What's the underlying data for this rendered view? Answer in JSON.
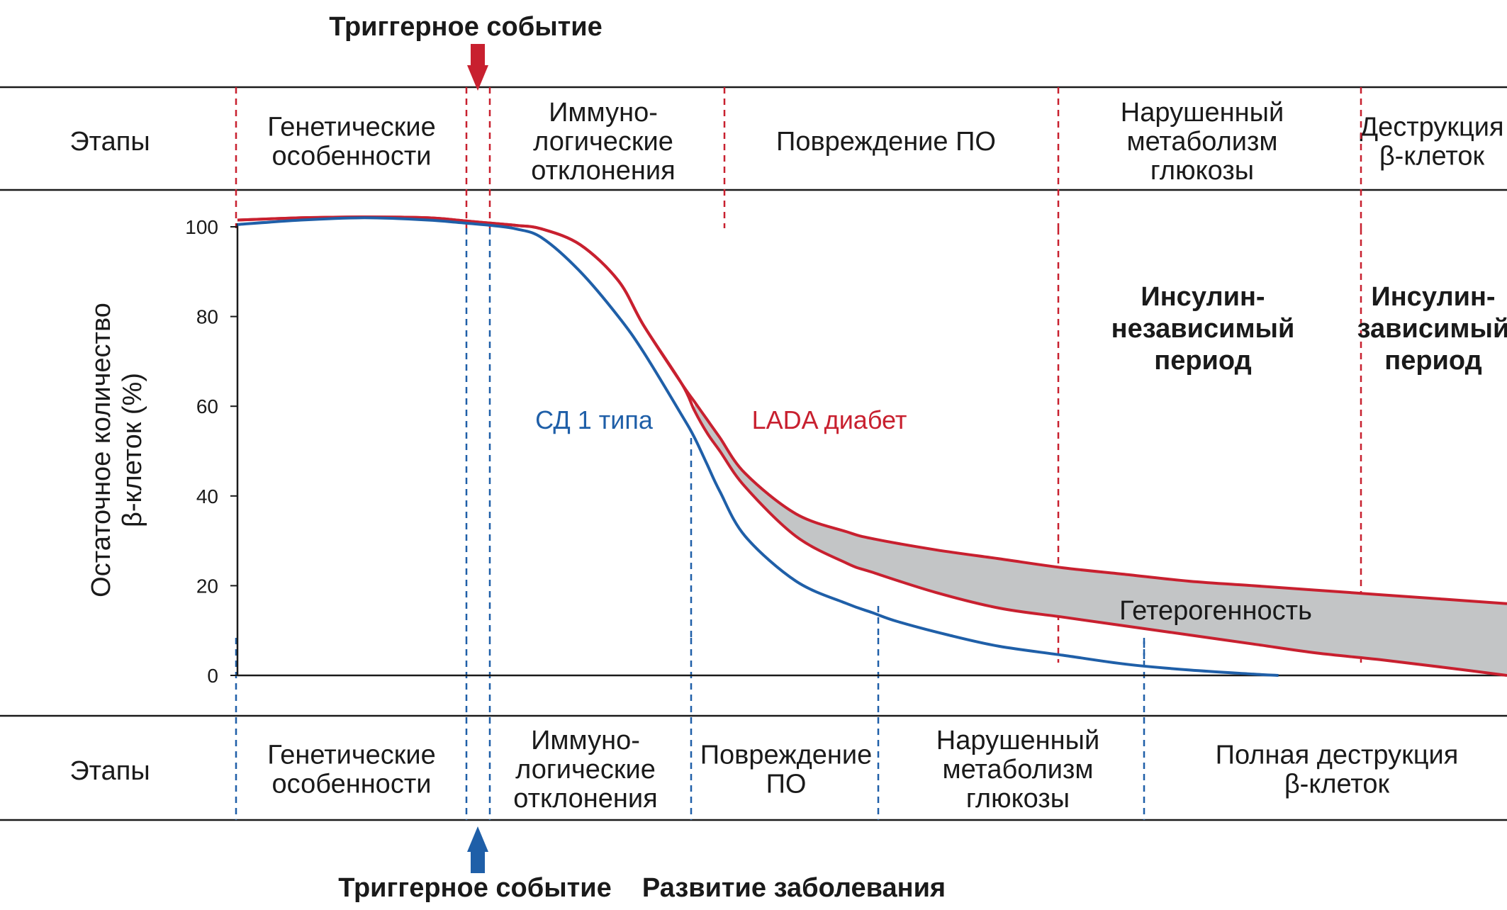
{
  "top_band": {
    "label": "Этапы",
    "stages": [
      {
        "lines": [
          "Генетические",
          "особенности"
        ]
      },
      {
        "lines": [
          "Иммуно-",
          "логические",
          "отклонения"
        ]
      },
      {
        "lines": [
          "Повреждение ПО"
        ]
      },
      {
        "lines": [
          "Нарушенный",
          "метаболизм",
          "глюкозы"
        ]
      },
      {
        "lines": [
          "Деструкция",
          "β-клеток"
        ]
      }
    ]
  },
  "bottom_band": {
    "label": "Этапы",
    "stages": [
      {
        "lines": [
          "Генетические",
          "особенности"
        ]
      },
      {
        "lines": [
          "Иммуно-",
          "логические",
          "отклонения"
        ]
      },
      {
        "lines": [
          "Повреждение",
          "ПО"
        ]
      },
      {
        "lines": [
          "Нарушенный",
          "метаболизм",
          "глюкозы"
        ]
      },
      {
        "lines": [
          "Полная деструкция",
          "β-клеток"
        ]
      }
    ]
  },
  "annotations": {
    "trigger_top": "Триггерное событие",
    "trigger_bottom": "Триггерное событие",
    "disease_onset": "Развитие заболевания",
    "heterogeneity": "Гетерогенность",
    "insulin_independent": [
      "Инсулин-",
      "независимый",
      "период"
    ],
    "insulin_dependent": [
      "Инсулин-",
      "зависимый",
      "период"
    ]
  },
  "colors": {
    "lada": "#c8202f",
    "type1": "#1f5fa8",
    "band_fill": "#c3c5c6",
    "axis": "#1a1a1a"
  },
  "chart_data": {
    "type": "line",
    "title": "",
    "xlabel": "",
    "ylabel": [
      "Остаточное количество",
      "β-клеток (%)"
    ],
    "ylim": [
      0,
      100
    ],
    "yticks": [
      0,
      20,
      40,
      60,
      80,
      100
    ],
    "x_note": "x is relative time, 0–100 (axis not labeled)",
    "xlim": [
      0,
      100
    ],
    "series": [
      {
        "name": "СД 1 типа",
        "x": [
          0,
          5,
          10,
          15,
          18,
          20,
          22,
          24,
          27,
          30,
          32,
          35,
          36,
          37,
          38,
          40,
          44,
          48,
          50,
          52,
          56,
          60,
          65,
          70,
          75,
          80,
          82
        ],
        "y": [
          100.5,
          101.5,
          102,
          101.5,
          100.8,
          100.3,
          99.5,
          97.5,
          90,
          80,
          72,
          58,
          53,
          47,
          41,
          31,
          21,
          16,
          14,
          12,
          9,
          6.5,
          4.5,
          2.5,
          1.2,
          0.3,
          0
        ]
      },
      {
        "name": "LADA диабет",
        "x": [
          0,
          5,
          10,
          15,
          18,
          20,
          22,
          24,
          27,
          30,
          32,
          35,
          36,
          37,
          38,
          40,
          44,
          48,
          50,
          55,
          60,
          65,
          70,
          75,
          80,
          85,
          90,
          95,
          100
        ],
        "y_upper": [
          101.5,
          102,
          102.2,
          102,
          101.3,
          100.8,
          100.3,
          99.5,
          96,
          88,
          78,
          65,
          61,
          57,
          53,
          45,
          36,
          32,
          30.5,
          28,
          26,
          24,
          22.5,
          21,
          20,
          19,
          18,
          17,
          16
        ],
        "y_lower": [
          101.5,
          102,
          102.2,
          102,
          101.3,
          100.8,
          100.3,
          99.5,
          96,
          88,
          78,
          65,
          59,
          54,
          50,
          42,
          31,
          25,
          23,
          18.5,
          15,
          13,
          11,
          9,
          7,
          5,
          3.5,
          1.8,
          0
        ]
      }
    ],
    "band_label": "Гетерогенность",
    "series_labels": {
      "type1": "СД 1 типа",
      "lada": "LADA диабет"
    }
  }
}
